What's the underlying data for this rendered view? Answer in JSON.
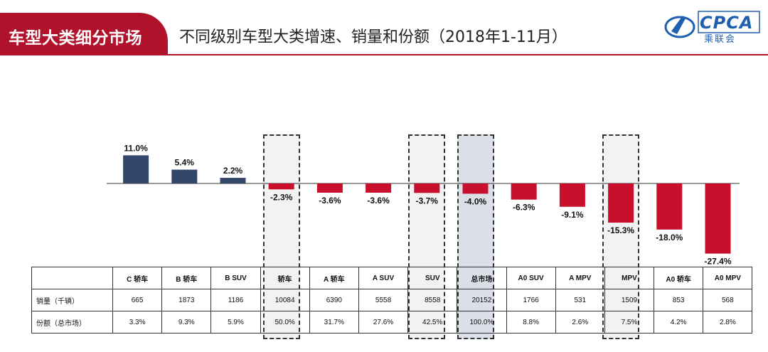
{
  "header": {
    "tag": "车型大类细分市场",
    "subtitle": "不同级别车型大类增速、销量和份额（2018年1-11月）",
    "logo_text": "CPCA",
    "logo_sub": "乘联会"
  },
  "colors": {
    "positive": "#33476b",
    "negative": "#c8102e",
    "highlight_fill": "#dbe0e8",
    "dashed_fill": "#f2f2f2",
    "brand": "#b0122b"
  },
  "table": {
    "rows": [
      {
        "label": "销量（千辆）",
        "values": [
          "665",
          "1873",
          "1186",
          "10084",
          "6390",
          "5558",
          "8558",
          "20152",
          "1766",
          "531",
          "1509",
          "853",
          "568"
        ]
      },
      {
        "label": "份额（总市场）",
        "values": [
          "3.3%",
          "9.3%",
          "5.9%",
          "50.0%",
          "31.7%",
          "27.6%",
          "42.5%",
          "100.0%",
          "8.8%",
          "2.6%",
          "7.5%",
          "4.2%",
          "2.8%"
        ]
      }
    ]
  },
  "chart_data": {
    "type": "bar",
    "title": "不同级别车型大类增速、销量和份额（2018年1-11月）",
    "categories": [
      "C 轿车",
      "B 轿车",
      "B SUV",
      "轿车",
      "A 轿车",
      "A SUV",
      "SUV",
      "总市场",
      "A0 SUV",
      "A MPV",
      "MPV",
      "A0 轿车",
      "A0 MPV"
    ],
    "values": [
      11.0,
      5.4,
      2.2,
      -2.3,
      -3.6,
      -3.6,
      -3.7,
      -4.0,
      -6.3,
      -9.1,
      -15.3,
      -18.0,
      -27.4
    ],
    "labels": [
      "11.0%",
      "5.4%",
      "2.2%",
      "-2.3%",
      "-3.6%",
      "-3.6%",
      "-3.7%",
      "-4.0%",
      "-6.3%",
      "-9.1%",
      "-15.3%",
      "-18.0%",
      "-27.4%"
    ],
    "unit": "%",
    "highlighted": [
      "轿车",
      "SUV",
      "总市场",
      "MPV"
    ],
    "emphasized": "总市场",
    "grid": false,
    "legend": "none"
  }
}
